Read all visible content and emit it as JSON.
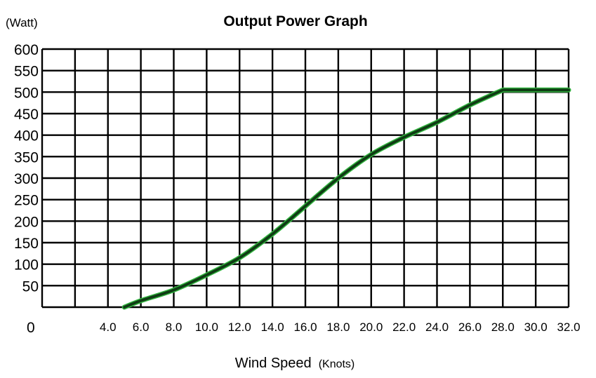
{
  "chart_data": {
    "type": "line",
    "title": "Output Power Graph",
    "ylabel": "(Watt)",
    "xlabel": "Wind Speed",
    "xlabel_unit": "(Knots)",
    "origin_label": "0",
    "xlim": [
      0,
      32
    ],
    "ylim": [
      0,
      600
    ],
    "grid": true,
    "x_ticks": [
      4,
      6,
      8,
      10,
      12,
      14,
      16,
      18,
      20,
      22,
      24,
      26,
      28,
      30,
      32
    ],
    "x_tick_labels": [
      "4.0",
      "6.0",
      "8.0",
      "10.0",
      "12.0",
      "14.0",
      "16.0",
      "18.0",
      "20.0",
      "22.0",
      "24.0",
      "26.0",
      "28.0",
      "30.0",
      "32.0"
    ],
    "y_ticks": [
      50,
      100,
      150,
      200,
      250,
      300,
      350,
      400,
      450,
      500,
      550,
      600
    ],
    "y_tick_labels": [
      "50",
      "100",
      "150",
      "200",
      "250",
      "300",
      "350",
      "400",
      "450",
      "500",
      "550",
      "600"
    ],
    "series": [
      {
        "color": "#0f3d14",
        "outline": "#33b540",
        "x": [
          5,
          6,
          8,
          10,
          12,
          14,
          16,
          18,
          20,
          22,
          24,
          26,
          28,
          30,
          32
        ],
        "y": [
          0,
          15,
          40,
          75,
          115,
          170,
          235,
          300,
          355,
          395,
          430,
          470,
          505,
          505,
          505
        ]
      }
    ]
  }
}
